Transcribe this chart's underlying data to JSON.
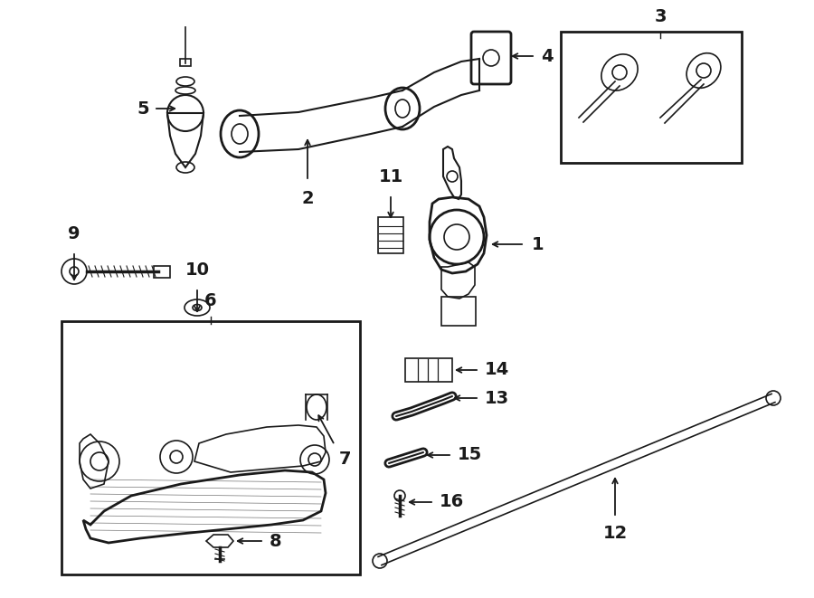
{
  "bg_color": "#ffffff",
  "line_color": "#1a1a1a",
  "figsize": [
    9.0,
    6.61
  ],
  "dpi": 100,
  "label_fontsize": 14,
  "label_fontweight": "bold"
}
